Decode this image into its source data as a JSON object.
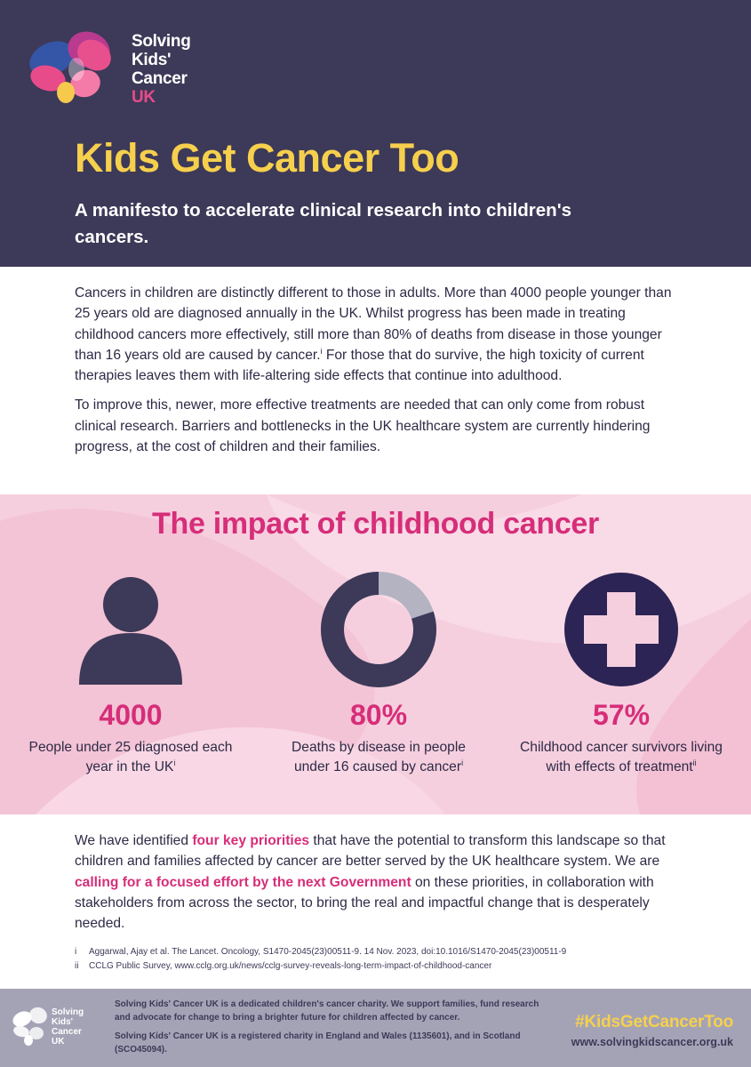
{
  "logo": {
    "line1": "Solving",
    "line2": "Kids'",
    "line3": "Cancer",
    "line4": "UK"
  },
  "header": {
    "title": "Kids Get Cancer Too",
    "subtitle": "A manifesto to accelerate clinical research into children's cancers."
  },
  "intro": {
    "p1_main": "Cancers in children are distinctly different to those in adults. More than 4000 people younger than 25 years old are diagnosed annually in the UK. Whilst progress has been made in treating childhood cancers more effectively, still more than 80% of deaths from disease in those younger than 16 years old are caused by cancer.",
    "p1_ref": "i",
    "p1_rest": " For those that do survive, the high toxicity of current therapies leaves them with life-altering side effects that continue into adulthood.",
    "p2": "To improve this, newer, more effective treatments are needed that can only come from robust clinical research. Barriers and bottlenecks in the UK healthcare system are currently hindering progress, at the cost of children and their families."
  },
  "impact": {
    "title": "The impact of childhood cancer",
    "stats": [
      {
        "icon": "person-icon",
        "value": "4000",
        "desc": "People under 25 diagnosed each year in the UK",
        "ref": "i"
      },
      {
        "icon": "donut-chart-icon",
        "value": "80%",
        "percent": 80,
        "desc": "Deaths by disease in people under 16 caused by cancer",
        "ref": "i"
      },
      {
        "icon": "medical-cross-icon",
        "value": "57%",
        "desc": "Childhood cancer survivors living with effects of treatment",
        "ref": "ii"
      }
    ]
  },
  "cta": {
    "t1": "We have identified ",
    "h1": "four key priorities",
    "t2": " that have the potential to transform this landscape so that children and families affected by cancer are better served by the UK healthcare system. We are ",
    "h2": "calling for a focused effort by the next Government",
    "t3": " on these priorities, in collaboration with stakeholders from across the sector, to bring the real and impactful change that is desperately needed."
  },
  "references": [
    {
      "num": "i",
      "text": "Aggarwal, Ajay et al. The Lancet. Oncology, S1470-2045(23)00511-9. 14 Nov. 2023, doi:10.1016/S1470-2045(23)00511-9"
    },
    {
      "num": "ii",
      "text": "CCLG Public Survey, www.cclg.org.uk/news/cclg-survey-reveals-long-term-impact-of-childhood-cancer"
    }
  ],
  "footer": {
    "about": "Solving Kids' Cancer UK is a dedicated children's cancer charity. We support families, fund research and advocate for change to bring a brighter future for children affected by cancer.",
    "charity": "Solving Kids' Cancer UK is a registered charity in England and Wales (1135601), and in Scotland (SCO45094).",
    "hashtag": "#KidsGetCancerToo",
    "website": "www.solvingkidscancer.org.uk"
  },
  "colors": {
    "navy": "#3d3958",
    "yellow": "#f6d04d",
    "pink": "#d62e79",
    "panel_pink": "#f6cfdf",
    "footer_grey": "#a4a3b6",
    "icon_dark": "#3d3958",
    "donut_track": "#b3b3c2"
  }
}
